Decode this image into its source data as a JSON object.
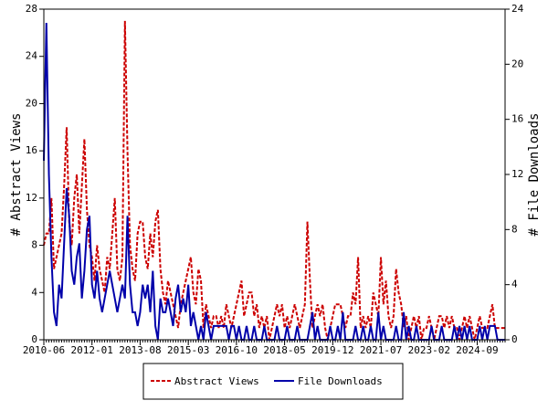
{
  "chart_data": {
    "type": "line",
    "y_label": "# Abstract Views",
    "y2_label": "# File Downloads",
    "x": [
      "2010-06",
      "2010-07",
      "2010-08",
      "2010-09",
      "2010-10",
      "2010-11",
      "2010-12",
      "2011-01",
      "2011-02",
      "2011-03",
      "2011-04",
      "2011-05",
      "2011-06",
      "2011-07",
      "2011-08",
      "2011-09",
      "2011-10",
      "2011-11",
      "2011-12",
      "2012-01",
      "2012-02",
      "2012-03",
      "2012-04",
      "2012-05",
      "2012-06",
      "2012-07",
      "2012-08",
      "2012-09",
      "2012-10",
      "2012-11",
      "2012-12",
      "2013-01",
      "2013-02",
      "2013-03",
      "2013-04",
      "2013-05",
      "2013-06",
      "2013-07",
      "2013-08",
      "2013-09",
      "2013-10",
      "2013-11",
      "2013-12",
      "2014-01",
      "2014-02",
      "2014-03",
      "2014-04",
      "2014-05",
      "2014-06",
      "2014-07",
      "2014-08",
      "2014-09",
      "2014-10",
      "2014-11",
      "2014-12",
      "2015-01",
      "2015-02",
      "2015-03",
      "2015-04",
      "2015-05",
      "2015-06",
      "2015-07",
      "2015-08",
      "2015-09",
      "2015-10",
      "2015-11",
      "2015-12",
      "2016-01",
      "2016-02",
      "2016-03",
      "2016-04",
      "2016-05",
      "2016-06",
      "2016-07",
      "2016-08",
      "2016-09",
      "2016-10",
      "2016-11",
      "2016-12",
      "2017-01",
      "2017-02",
      "2017-03",
      "2017-04",
      "2017-05",
      "2017-06",
      "2017-07",
      "2017-08",
      "2017-09",
      "2017-10",
      "2017-11",
      "2017-12",
      "2018-01",
      "2018-02",
      "2018-03",
      "2018-04",
      "2018-05",
      "2018-06",
      "2018-07",
      "2018-08",
      "2018-09",
      "2018-10",
      "2018-11",
      "2018-12",
      "2019-01",
      "2019-02",
      "2019-03",
      "2019-04",
      "2019-05",
      "2019-06",
      "2019-07",
      "2019-08",
      "2019-09",
      "2019-10",
      "2019-11",
      "2019-12",
      "2020-01",
      "2020-02",
      "2020-03",
      "2020-04",
      "2020-05",
      "2020-06",
      "2020-07",
      "2020-08",
      "2020-09",
      "2020-10",
      "2020-11",
      "2020-12",
      "2021-01",
      "2021-02",
      "2021-03",
      "2021-04",
      "2021-05",
      "2021-06",
      "2021-07",
      "2021-08",
      "2021-09",
      "2021-10",
      "2021-11",
      "2021-12",
      "2022-01",
      "2022-02",
      "2022-03",
      "2022-04",
      "2022-05",
      "2022-06",
      "2022-07",
      "2022-08",
      "2022-09",
      "2022-10",
      "2022-11",
      "2022-12",
      "2023-01",
      "2023-02",
      "2023-03",
      "2023-04",
      "2023-05",
      "2023-06",
      "2023-07",
      "2023-08",
      "2023-09",
      "2023-10",
      "2023-11",
      "2023-12",
      "2024-01",
      "2024-02",
      "2024-03",
      "2024-04",
      "2024-05",
      "2024-06",
      "2024-07",
      "2024-08",
      "2024-09",
      "2024-10",
      "2024-11",
      "2024-12",
      "2025-01",
      "2025-02",
      "2025-03",
      "2025-04",
      "2025-05",
      "2025-06",
      "2025-07",
      "2025-08"
    ],
    "xlim": [
      "2010-06",
      "2025-08"
    ],
    "xticks": [
      "2010-06",
      "2012-01",
      "2013-08",
      "2015-03",
      "2016-10",
      "2018-05",
      "2019-12",
      "2021-07",
      "2023-02",
      "2024-09"
    ],
    "ylim": [
      0,
      28
    ],
    "yticks": [
      0,
      4,
      8,
      12,
      16,
      20,
      24,
      28
    ],
    "y2lim": [
      0,
      24
    ],
    "y2ticks": [
      0,
      4,
      8,
      12,
      16,
      20,
      24
    ],
    "legend": "bottom",
    "series": [
      {
        "name": "Abstract Views",
        "color": "#cc0000",
        "linestyle": "dashed",
        "values": [
          8,
          9,
          9,
          12,
          6,
          7,
          8,
          9,
          13,
          18,
          10,
          8,
          12,
          14,
          9,
          13,
          17,
          11,
          8,
          7,
          5,
          8,
          6,
          5,
          4,
          7,
          6,
          9,
          12,
          6,
          5,
          7,
          27,
          16,
          8,
          6,
          5,
          9,
          10,
          10,
          7,
          6,
          9,
          7,
          10,
          11,
          6,
          4,
          3,
          5,
          4,
          3,
          2,
          1,
          3,
          4,
          5,
          6,
          7,
          4,
          3,
          6,
          5,
          1,
          3,
          2,
          1,
          2,
          2,
          1,
          2,
          1,
          3,
          2,
          1,
          2,
          3,
          4,
          5,
          2,
          3,
          4,
          4,
          2,
          3,
          1,
          2,
          1,
          2,
          0,
          1,
          2,
          3,
          2,
          3,
          1,
          2,
          1,
          2,
          3,
          2,
          1,
          2,
          3,
          10,
          5,
          1,
          2,
          3,
          2,
          3,
          1,
          0,
          1,
          2,
          3,
          3,
          3,
          2,
          1,
          2,
          2,
          4,
          3,
          7,
          1,
          2,
          1,
          2,
          1,
          4,
          3,
          2,
          7,
          3,
          5,
          2,
          1,
          2,
          6,
          4,
          3,
          1,
          2,
          0,
          1,
          2,
          1,
          2,
          0,
          1,
          1,
          2,
          1,
          0,
          1,
          2,
          2,
          1,
          2,
          1,
          2,
          1,
          1,
          0,
          1,
          2,
          1,
          2,
          1,
          0,
          1,
          2,
          1,
          1,
          1,
          2,
          3,
          1,
          1,
          1,
          1,
          1
        ]
      },
      {
        "name": "File Downloads",
        "color": "#0000aa",
        "linestyle": "solid",
        "axis": "y2",
        "values": [
          13,
          23,
          12,
          6,
          2,
          1,
          4,
          3,
          7,
          11,
          9,
          5,
          4,
          6,
          7,
          3,
          5,
          8,
          9,
          4,
          3,
          5,
          3,
          2,
          3,
          4,
          5,
          4,
          3,
          2,
          3,
          4,
          3,
          9,
          4,
          2,
          2,
          1,
          2,
          4,
          3,
          4,
          2,
          5,
          1,
          0,
          3,
          2,
          2,
          3,
          2,
          1,
          3,
          4,
          2,
          3,
          2,
          4,
          1,
          2,
          1,
          0,
          1,
          0,
          2,
          1,
          0,
          1,
          1,
          1,
          1,
          1,
          1,
          0,
          1,
          1,
          0,
          1,
          0,
          0,
          1,
          0,
          0,
          1,
          0,
          0,
          0,
          1,
          0,
          0,
          0,
          0,
          1,
          0,
          0,
          0,
          1,
          0,
          0,
          0,
          1,
          0,
          0,
          0,
          0,
          1,
          2,
          0,
          1,
          0,
          0,
          0,
          0,
          1,
          0,
          0,
          1,
          0,
          2,
          0,
          0,
          0,
          0,
          1,
          0,
          0,
          1,
          0,
          0,
          1,
          0,
          0,
          2,
          0,
          1,
          0,
          0,
          0,
          0,
          1,
          0,
          0,
          2,
          0,
          1,
          0,
          0,
          1,
          0,
          0,
          0,
          0,
          0,
          1,
          0,
          0,
          0,
          1,
          0,
          0,
          0,
          0,
          1,
          0,
          1,
          0,
          1,
          0,
          1,
          0,
          0,
          0,
          1,
          0,
          1,
          0,
          1,
          1,
          1,
          0,
          0,
          0,
          0
        ]
      }
    ]
  }
}
